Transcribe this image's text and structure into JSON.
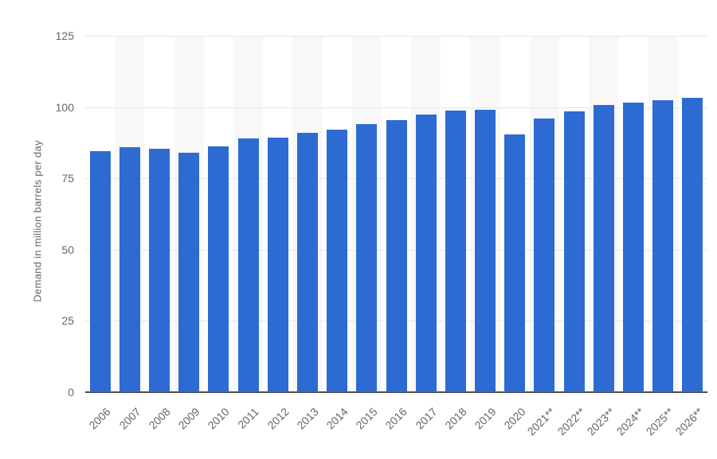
{
  "chart_data": {
    "type": "bar",
    "title": "",
    "xlabel": "",
    "ylabel": "Demand in million barrels per day",
    "categories": [
      "2006",
      "2007",
      "2008",
      "2009",
      "2010",
      "2011",
      "2012",
      "2013",
      "2014",
      "2015",
      "2016",
      "2017",
      "2018",
      "2019",
      "2020",
      "2021**",
      "2022**",
      "2023**",
      "2024**",
      "2025**",
      "2026**"
    ],
    "values": [
      84.6,
      86.0,
      85.5,
      84.0,
      86.1,
      88.9,
      89.4,
      90.9,
      92.2,
      94.1,
      95.5,
      97.4,
      98.7,
      99.1,
      90.4,
      95.9,
      98.4,
      100.6,
      101.5,
      102.4,
      103.3
    ],
    "ylim": [
      0,
      125
    ],
    "yticks": [
      0,
      25,
      50,
      75,
      100,
      125
    ],
    "grid": true,
    "legend": false,
    "colors": {
      "bar": "#2d6bd3",
      "stripe": "#f8f8f8",
      "stripe_alt": "#ffffff",
      "gridline": "#e7e7e7",
      "axis_line": "#4b4b4b",
      "tick_label": "#666666",
      "background": "#ffffff"
    }
  }
}
